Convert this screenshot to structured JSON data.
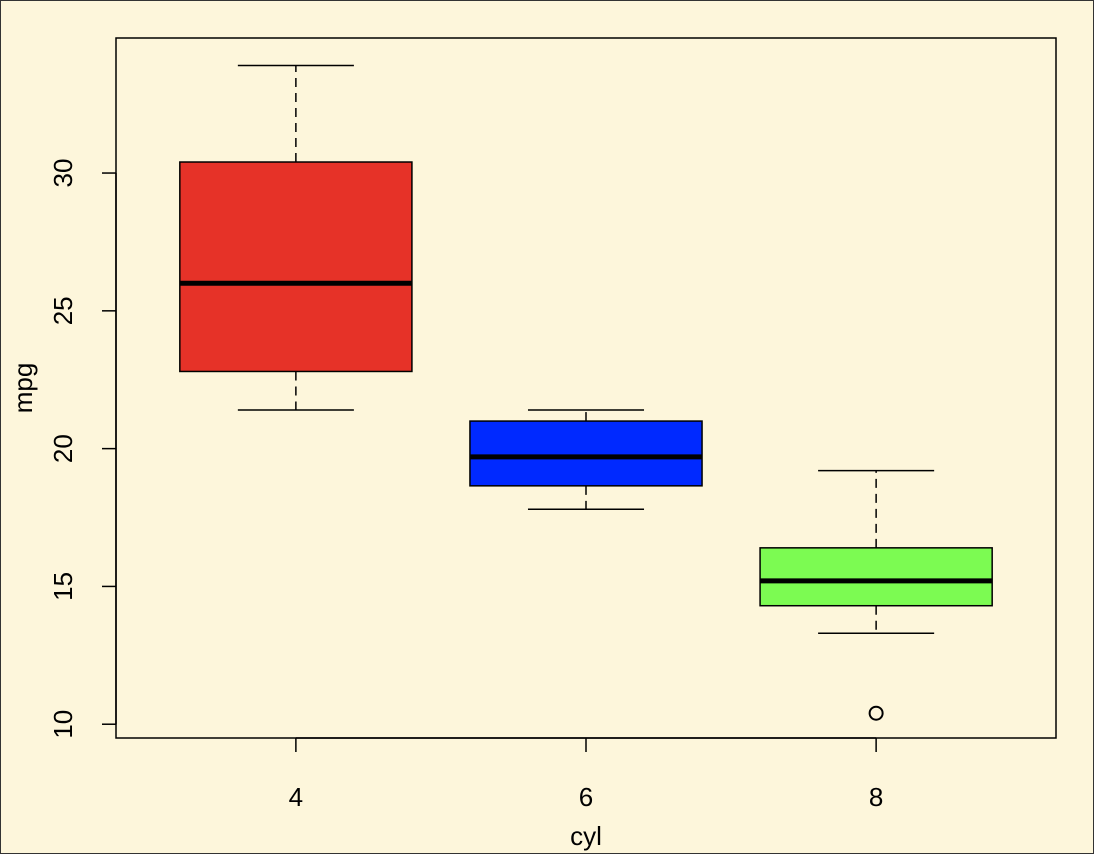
{
  "chart_data": {
    "type": "box",
    "title": "",
    "xlabel": "cyl",
    "ylabel": "mpg",
    "ylim": [
      9.5,
      34.9
    ],
    "y_ticks": [
      10,
      15,
      20,
      25,
      30
    ],
    "grid": false,
    "background": "#fdf6db",
    "categories": [
      "4",
      "6",
      "8"
    ],
    "boxes": [
      {
        "category": "4",
        "whisker_low": 21.4,
        "q1": 22.8,
        "median": 26.0,
        "q3": 30.4,
        "whisker_high": 33.9,
        "outliers": [],
        "color": "#e63228"
      },
      {
        "category": "6",
        "whisker_low": 17.8,
        "q1": 18.65,
        "median": 19.7,
        "q3": 21.0,
        "whisker_high": 21.4,
        "outliers": [],
        "color": "#0029ff"
      },
      {
        "category": "8",
        "whisker_low": 13.3,
        "q1": 14.3,
        "median": 15.2,
        "q3": 16.4,
        "whisker_high": 19.2,
        "outliers": [
          10.4
        ],
        "color": "#7cfb52"
      }
    ]
  }
}
